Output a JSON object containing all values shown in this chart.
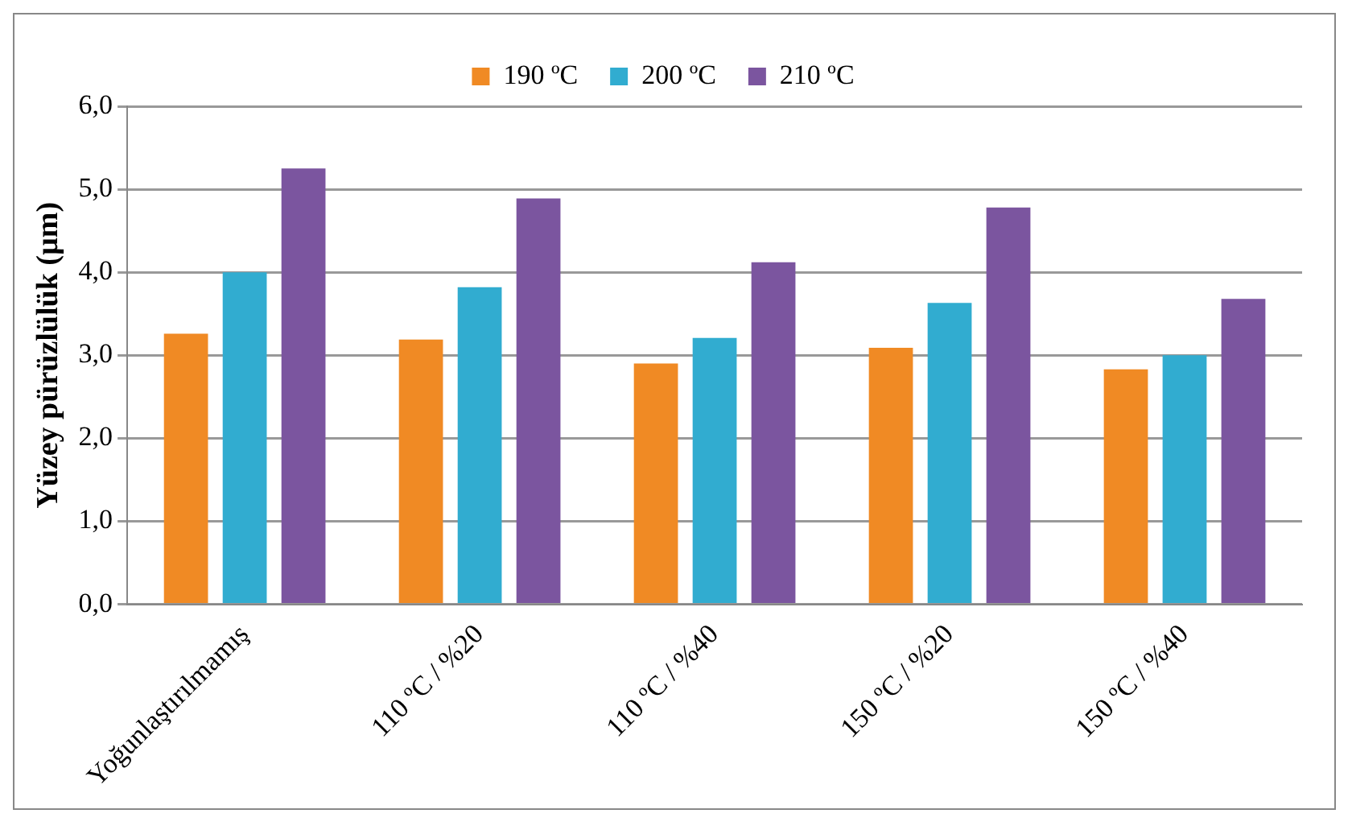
{
  "chart_data": {
    "type": "bar",
    "ylabel": "Yüzey pürüzlülük (µm)",
    "categories": [
      "Yoğunlaştırılmamış",
      "110 ºC / %20",
      "110 ºC / %40",
      "150 ºC / %20",
      "150 ºC / %40"
    ],
    "series": [
      {
        "name": "190 ºC",
        "color": "#f08a24",
        "values": [
          3.26,
          3.19,
          2.9,
          3.09,
          2.83
        ]
      },
      {
        "name": "200 ºC",
        "color": "#31acd0",
        "values": [
          4.0,
          3.82,
          3.21,
          3.63,
          3.0
        ]
      },
      {
        "name": "210 ºC",
        "color": "#7b559f",
        "values": [
          5.25,
          4.89,
          4.12,
          4.78,
          3.68
        ]
      }
    ],
    "ylim": [
      0,
      6
    ],
    "yticks": [
      {
        "value": 0,
        "label": "0,0"
      },
      {
        "value": 1,
        "label": "1,0"
      },
      {
        "value": 2,
        "label": "2,0"
      },
      {
        "value": 3,
        "label": "3,0"
      },
      {
        "value": 4,
        "label": "4,0"
      },
      {
        "value": 5,
        "label": "5,0"
      },
      {
        "value": 6,
        "label": "6,0"
      }
    ],
    "grid": "y",
    "legend": "top"
  }
}
